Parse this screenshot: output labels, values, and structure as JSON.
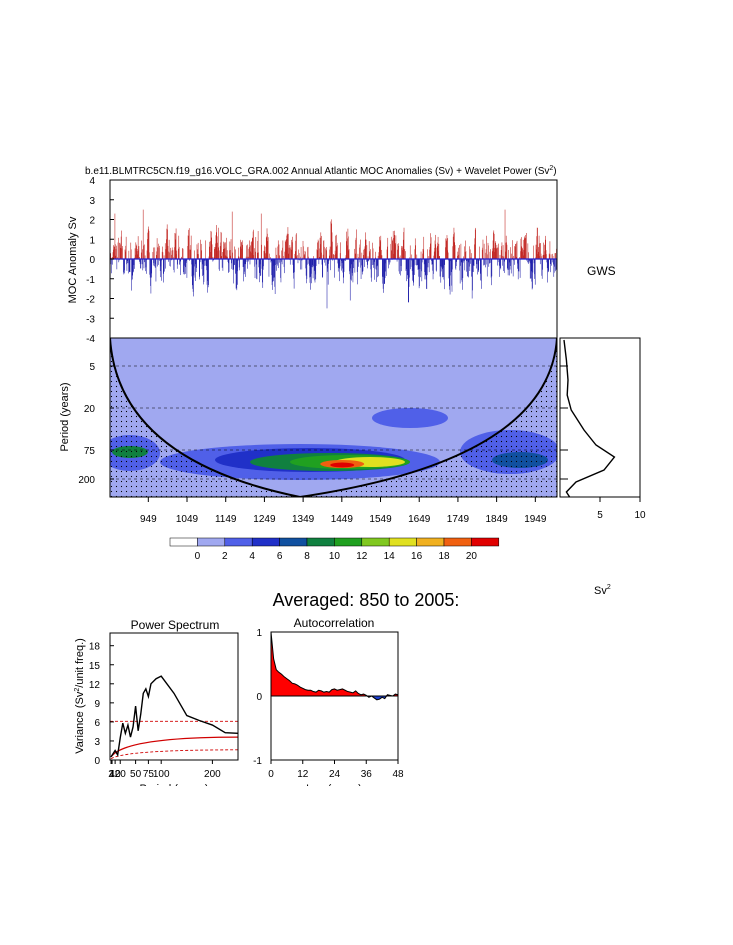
{
  "figure": {
    "title_main": "b.e11.BLMTRC5CN.f19_g16.VOLC_GRA.002 Annual Atlantic MOC Anomalies (Sv) + Wavelet Power (Sv",
    "title_sup": "2",
    "title_close": ")",
    "gws_label": "GWS",
    "colorbar_unit_main": "Sv",
    "colorbar_unit_sup": "2",
    "averaged_title": "Averaged: 850 to 2005:"
  },
  "chart_data": [
    {
      "type": "area",
      "name": "moc-anomaly",
      "ylabel": "MOC Anomaly Sv",
      "ylim": [
        -4,
        4
      ],
      "yticks": [
        "4",
        "3",
        "2",
        "1",
        "0",
        "-1",
        "-2",
        "-3",
        "-4"
      ],
      "xlim": [
        850,
        2005
      ],
      "fill_positive": "#c0201c",
      "fill_negative": "#1a1aa8",
      "peaks": [
        {
          "x": 862,
          "y": 2.3
        },
        {
          "x": 935,
          "y": 2.5
        },
        {
          "x": 1165,
          "y": 2.4
        },
        {
          "x": 1240,
          "y": 2.3
        },
        {
          "x": 1870,
          "y": 2.5
        },
        {
          "x": 1420,
          "y": 1.9
        }
      ],
      "troughs": [
        {
          "x": 905,
          "y": -1.6
        },
        {
          "x": 1175,
          "y": -1.5
        },
        {
          "x": 1410,
          "y": -2.5
        },
        {
          "x": 1470,
          "y": -2.1
        },
        {
          "x": 1620,
          "y": -2.2
        },
        {
          "x": 1785,
          "y": -2.0
        }
      ]
    },
    {
      "type": "heatmap",
      "name": "wavelet-power",
      "ylabel": "Period (years)",
      "yticks": [
        "5",
        "20",
        "75",
        "200"
      ],
      "xticks": [
        "949",
        "1049",
        "1149",
        "1249",
        "1349",
        "1449",
        "1549",
        "1649",
        "1749",
        "1849",
        "1949"
      ],
      "xlim": [
        850,
        2005
      ],
      "colorbar_levels": [
        "0",
        "2",
        "4",
        "6",
        "8",
        "10",
        "12",
        "14",
        "16",
        "18",
        "20"
      ],
      "colorbar_colors": [
        "#ffffff",
        "#a0a8f0",
        "#5060e8",
        "#2030c8",
        "#1050a0",
        "#108040",
        "#20a020",
        "#80c820",
        "#e0e020",
        "#f0b020",
        "#f06010",
        "#e00000"
      ],
      "hotspot": {
        "x": 1450,
        "period": 120,
        "power": 20
      }
    },
    {
      "type": "line",
      "name": "global-wavelet-spectrum",
      "xticks": [
        "5",
        "10"
      ],
      "xlim": [
        0,
        10
      ],
      "peak": {
        "period": 90,
        "power": 6.8
      }
    },
    {
      "type": "line",
      "name": "power-spectrum",
      "title": "Power Spectrum",
      "ylabel_main": "Variance (Sv",
      "ylabel_sup": "2",
      "ylabel_tail": "/unit freq.)",
      "xlabel": "Period (years)",
      "yticks": [
        "0",
        "3",
        "6",
        "9",
        "12",
        "15",
        "18"
      ],
      "xticks": [
        "2",
        "4",
        "10",
        "20",
        "50",
        "75",
        "100",
        "200"
      ],
      "ylim": [
        0,
        20
      ],
      "xlim": [
        0,
        250
      ],
      "series": [
        {
          "x": [
            2,
            10,
            15,
            20,
            25,
            30,
            35,
            40,
            45,
            50,
            55,
            60,
            65,
            70,
            75,
            80,
            90,
            100,
            125,
            150,
            175,
            200,
            225,
            250
          ],
          "y": [
            0.5,
            1.5,
            0.8,
            3.5,
            5.8,
            4.2,
            5.5,
            3.6,
            5.2,
            8.5,
            4.6,
            7.2,
            10.5,
            11.2,
            10.0,
            12.0,
            12.8,
            13.2,
            10.5,
            7.0,
            6.2,
            5.5,
            4.3,
            4.2
          ]
        }
      ],
      "significance_upper": 6.1,
      "significance_mid": 3.6,
      "significance_lower": 1.6
    },
    {
      "type": "area",
      "name": "autocorrelation",
      "title": "Autocorrelation",
      "xlabel": "Lag (years)",
      "yticks": [
        "1",
        "0",
        "-1"
      ],
      "xticks": [
        "0",
        "12",
        "24",
        "36",
        "48"
      ],
      "ylim": [
        -1,
        1
      ],
      "xlim": [
        0,
        48
      ],
      "x": [
        0,
        1,
        2,
        3,
        4,
        5,
        6,
        7,
        8,
        9,
        10,
        11,
        12,
        13,
        14,
        15,
        16,
        17,
        18,
        19,
        20,
        21,
        22,
        23,
        24,
        25,
        26,
        27,
        28,
        29,
        30,
        31,
        32,
        33,
        34,
        35,
        36,
        37,
        38,
        39,
        40,
        41,
        42,
        43,
        44,
        45,
        46,
        47,
        48
      ],
      "y": [
        1.0,
        0.58,
        0.41,
        0.37,
        0.34,
        0.3,
        0.27,
        0.24,
        0.2,
        0.19,
        0.17,
        0.14,
        0.12,
        0.1,
        0.09,
        0.09,
        0.07,
        0.06,
        0.09,
        0.08,
        0.06,
        0.07,
        0.06,
        0.1,
        0.11,
        0.09,
        0.1,
        0.11,
        0.09,
        0.07,
        0.06,
        0.05,
        0.08,
        0.04,
        0.02,
        0.03,
        0.01,
        -0.02,
        0.0,
        -0.03,
        -0.06,
        -0.05,
        -0.02,
        -0.04,
        0.02,
        0.01,
        0.0,
        0.03,
        0.02
      ],
      "fill_positive": "#ff0000",
      "fill_negative": "#1a3fd0"
    }
  ]
}
